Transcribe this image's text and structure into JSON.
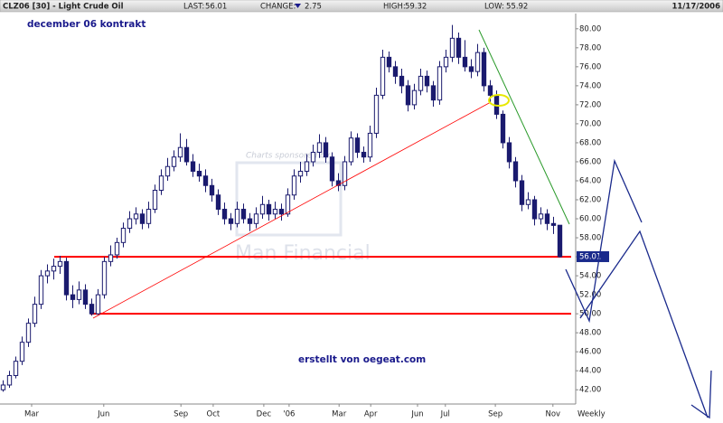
{
  "chart_data": {
    "type": "candlestick",
    "header": {
      "symbol": "CLZ06 [30] - Light Crude Oil",
      "last_label": "LAST:",
      "last": 56.01,
      "change_label": "CHANGE:",
      "change": 2.75,
      "high_label": "HIGH:",
      "high": 59.32,
      "low_label": "LOW:",
      "low": 55.92,
      "date": "11/17/2006"
    },
    "title": "december 06 kontrakt",
    "annotation": "erstellt von oegeat.com",
    "watermark": [
      "Charts sponsored by",
      "Man Financial"
    ],
    "period_label": "Weekly",
    "up_color": "#ffffff",
    "down_color": "#1a1a6e",
    "support_lines": [
      56,
      50
    ],
    "support_color": "#ff0000",
    "xlim": [
      -0.5,
      90.5
    ],
    "xticks": [
      {
        "value": 4.5,
        "label": "Mar"
      },
      {
        "value": 15.9,
        "label": "Jun"
      },
      {
        "value": 28.1,
        "label": "Sep"
      },
      {
        "value": 33.2,
        "label": "Oct"
      },
      {
        "value": 41.2,
        "label": "Dec"
      },
      {
        "value": 45.2,
        "label": "'06"
      },
      {
        "value": 53.1,
        "label": "Mar"
      },
      {
        "value": 58.1,
        "label": "Apr"
      },
      {
        "value": 65.5,
        "label": "Jun"
      },
      {
        "value": 69.9,
        "label": "Jul"
      },
      {
        "value": 77.8,
        "label": "Sep"
      },
      {
        "value": 86.9,
        "label": "Nov"
      }
    ],
    "ylim": [
      40.5,
      81.6
    ],
    "yticks": [
      {
        "value": 42,
        "label": "42.00"
      },
      {
        "value": 44,
        "label": "44.00"
      },
      {
        "value": 46,
        "label": "46.00"
      },
      {
        "value": 48,
        "label": "48.00"
      },
      {
        "value": 50,
        "label": "50.00"
      },
      {
        "value": 52,
        "label": "52.00"
      },
      {
        "value": 54,
        "label": "54.00"
      },
      {
        "value": 56,
        "label": "56.00"
      },
      {
        "value": 58,
        "label": "58.00"
      },
      {
        "value": 60,
        "label": "60.00"
      },
      {
        "value": 62,
        "label": "62.00"
      },
      {
        "value": 64,
        "label": "64.00"
      },
      {
        "value": 66,
        "label": "66.00"
      },
      {
        "value": 68,
        "label": "68.00"
      },
      {
        "value": 70,
        "label": "70.00"
      },
      {
        "value": 72,
        "label": "72.00"
      },
      {
        "value": 74,
        "label": "74.00"
      },
      {
        "value": 76,
        "label": "76.00"
      },
      {
        "value": 78,
        "label": "78.00"
      },
      {
        "value": 80,
        "label": "80.00"
      }
    ],
    "ohlc": [
      [
        42,
        43,
        41.8,
        42.5
      ],
      [
        42.5,
        44,
        42.2,
        43.5
      ],
      [
        43.5,
        45.5,
        43.2,
        45
      ],
      [
        45,
        47.6,
        44.6,
        47
      ],
      [
        47,
        49.5,
        46.5,
        49
      ],
      [
        49,
        51.8,
        48.6,
        51
      ],
      [
        51,
        54.6,
        50.5,
        54
      ],
      [
        54,
        55.2,
        53.2,
        54.5
      ],
      [
        54.5,
        55.8,
        53.6,
        55
      ],
      [
        55,
        56.1,
        54.2,
        55.5
      ],
      [
        55.5,
        55.9,
        51.4,
        52
      ],
      [
        52,
        53,
        50.6,
        51.5
      ],
      [
        51.5,
        53.4,
        51,
        52.5
      ],
      [
        52.5,
        53.1,
        50.5,
        51
      ],
      [
        51,
        51.6,
        49.8,
        50
      ],
      [
        50,
        52.6,
        49.9,
        52
      ],
      [
        52,
        56,
        51.6,
        55.5
      ],
      [
        55.5,
        57.2,
        55,
        56.2
      ],
      [
        56.2,
        58,
        55.8,
        57.5
      ],
      [
        57.5,
        59.6,
        57,
        59
      ],
      [
        59,
        60.8,
        58.5,
        60
      ],
      [
        60,
        61.2,
        59.4,
        60.5
      ],
      [
        60.5,
        61,
        58.9,
        59.5
      ],
      [
        59.5,
        61.8,
        59,
        61
      ],
      [
        61,
        63.6,
        60.6,
        63
      ],
      [
        63,
        65.2,
        62.5,
        64.5
      ],
      [
        64.5,
        66.4,
        64,
        65.5
      ],
      [
        65.5,
        67.2,
        65,
        66.5
      ],
      [
        66.5,
        69,
        66,
        67.5
      ],
      [
        67.5,
        68.4,
        65.6,
        66
      ],
      [
        66,
        66.8,
        64.4,
        65
      ],
      [
        65,
        65.8,
        63.9,
        64.5
      ],
      [
        64.5,
        65.2,
        62.8,
        63.5
      ],
      [
        63.5,
        64.2,
        61.8,
        62.5
      ],
      [
        62.5,
        63.1,
        60.4,
        61
      ],
      [
        61,
        61.7,
        59.4,
        60
      ],
      [
        60,
        60.6,
        58.8,
        59.5
      ],
      [
        59.5,
        61.8,
        59.1,
        61
      ],
      [
        61,
        61.6,
        59.5,
        60
      ],
      [
        60,
        60.6,
        58.7,
        59.5
      ],
      [
        59.5,
        61.2,
        59,
        60.5
      ],
      [
        60.5,
        62.4,
        60,
        61.5
      ],
      [
        61.5,
        62,
        59.8,
        60.5
      ],
      [
        60.5,
        61.8,
        60,
        61
      ],
      [
        61,
        61.6,
        59.8,
        60.5
      ],
      [
        60.5,
        63.2,
        60.2,
        62.5
      ],
      [
        62.5,
        65.2,
        62,
        64.5
      ],
      [
        64.5,
        66,
        63.8,
        65
      ],
      [
        65,
        66.8,
        64.5,
        66
      ],
      [
        66,
        67.8,
        65.5,
        67
      ],
      [
        67,
        68.9,
        66.4,
        68
      ],
      [
        68,
        68.6,
        65.9,
        66.5
      ],
      [
        66.5,
        67,
        63.4,
        64
      ],
      [
        64,
        64.8,
        62.9,
        63.5
      ],
      [
        63.5,
        66.6,
        63,
        66
      ],
      [
        66,
        69.2,
        65.6,
        68.5
      ],
      [
        68.5,
        69,
        66.4,
        67
      ],
      [
        67,
        67.6,
        65.9,
        66.5
      ],
      [
        66.5,
        69.8,
        66,
        69
      ],
      [
        69,
        73.8,
        68.5,
        73
      ],
      [
        73,
        77.8,
        72.6,
        77
      ],
      [
        77,
        77.6,
        75.4,
        76
      ],
      [
        76,
        76.6,
        74.2,
        75
      ],
      [
        75,
        75.8,
        73.2,
        74
      ],
      [
        74,
        74.6,
        71.3,
        72
      ],
      [
        72,
        74.2,
        71.5,
        73.5
      ],
      [
        73.5,
        75.8,
        73,
        75
      ],
      [
        75,
        75.6,
        73.3,
        74
      ],
      [
        74,
        74.5,
        71.8,
        72.5
      ],
      [
        72.5,
        76.6,
        72,
        76
      ],
      [
        76,
        77.8,
        75.4,
        77
      ],
      [
        77,
        80.4,
        76.5,
        79
      ],
      [
        79,
        79.6,
        76.3,
        77
      ],
      [
        77,
        78.8,
        75.5,
        76
      ],
      [
        76,
        76.8,
        74.8,
        75.5
      ],
      [
        75.5,
        78.4,
        75,
        77.5
      ],
      [
        77.5,
        78,
        73.4,
        74
      ],
      [
        74,
        74.6,
        72.2,
        73
      ],
      [
        73,
        73.5,
        70.5,
        71
      ],
      [
        71,
        71.4,
        67.4,
        68
      ],
      [
        68,
        68.6,
        65.3,
        66
      ],
      [
        66,
        66.5,
        63.3,
        64
      ],
      [
        64,
        64.6,
        60.8,
        61.5
      ],
      [
        61.5,
        62.8,
        61,
        62
      ],
      [
        62,
        62.4,
        59.3,
        60
      ],
      [
        60,
        61.2,
        59.4,
        60.5
      ],
      [
        60.5,
        61,
        58.8,
        59.5
      ],
      [
        59.5,
        60.2,
        58.4,
        59.3
      ],
      [
        59.32,
        59.32,
        55.92,
        56.01
      ]
    ]
  }
}
